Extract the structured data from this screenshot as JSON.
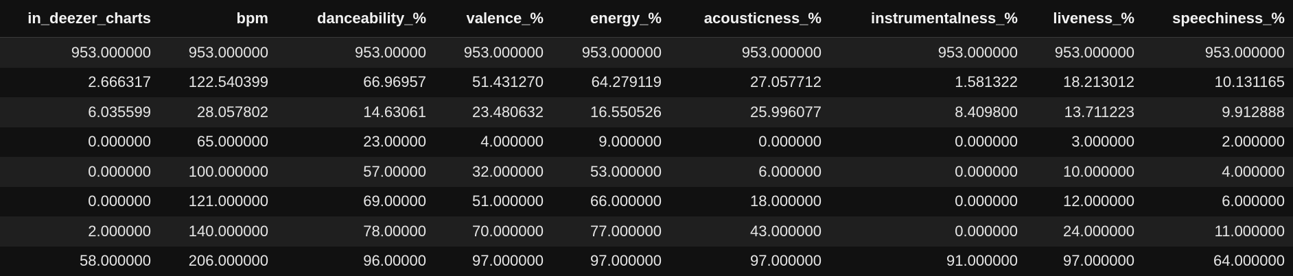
{
  "table": {
    "columns": [
      "in_deezer_charts",
      "bpm",
      "danceability_%",
      "valence_%",
      "energy_%",
      "acousticness_%",
      "instrumentalness_%",
      "liveness_%",
      "speechiness_%"
    ],
    "rows": [
      [
        "953.000000",
        "953.000000",
        "953.00000",
        "953.000000",
        "953.000000",
        "953.000000",
        "953.000000",
        "953.000000",
        "953.000000"
      ],
      [
        "2.666317",
        "122.540399",
        "66.96957",
        "51.431270",
        "64.279119",
        "27.057712",
        "1.581322",
        "18.213012",
        "10.131165"
      ],
      [
        "6.035599",
        "28.057802",
        "14.63061",
        "23.480632",
        "16.550526",
        "25.996077",
        "8.409800",
        "13.711223",
        "9.912888"
      ],
      [
        "0.000000",
        "65.000000",
        "23.00000",
        "4.000000",
        "9.000000",
        "0.000000",
        "0.000000",
        "3.000000",
        "2.000000"
      ],
      [
        "0.000000",
        "100.000000",
        "57.00000",
        "32.000000",
        "53.000000",
        "6.000000",
        "0.000000",
        "10.000000",
        "4.000000"
      ],
      [
        "0.000000",
        "121.000000",
        "69.00000",
        "51.000000",
        "66.000000",
        "18.000000",
        "0.000000",
        "12.000000",
        "6.000000"
      ],
      [
        "2.000000",
        "140.000000",
        "78.00000",
        "70.000000",
        "77.000000",
        "43.000000",
        "0.000000",
        "24.000000",
        "11.000000"
      ],
      [
        "58.000000",
        "206.000000",
        "96.00000",
        "97.000000",
        "97.000000",
        "97.000000",
        "91.000000",
        "97.000000",
        "64.000000"
      ]
    ]
  },
  "colors": {
    "background": "#111111",
    "row_stripe": "#1f1f1f",
    "text": "#e6e6e6",
    "header_text": "#f2f2f2"
  }
}
